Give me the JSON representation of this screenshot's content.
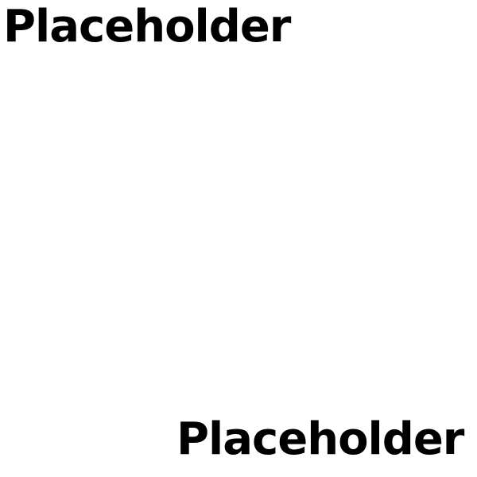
{
  "placeholders": {
    "top_left": "Placeholder",
    "bottom_right": "Placeholder"
  },
  "colors": {
    "background": "#ffffff",
    "text": "#000000"
  }
}
